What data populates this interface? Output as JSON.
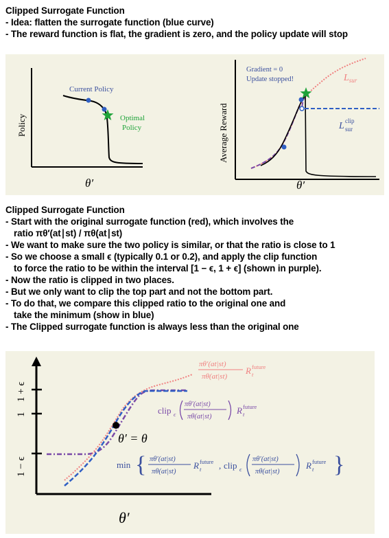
{
  "section1": {
    "title": "Clipped Surrogate Function",
    "lines": [
      "- Idea: flatten the surrogate function (blue curve)",
      "- The reward function is flat, the gradient is zero, and the policy update will stop"
    ]
  },
  "fig1": {
    "left": {
      "ylabel": "Policy",
      "xlabel": "θ′",
      "current_label": "Current Policy",
      "optimal_label_1": "Optimal",
      "optimal_label_2": "Policy"
    },
    "right": {
      "ylabel": "Average Reward",
      "xlabel": "θ′",
      "note_1": "Gradient = 0",
      "note_2": "Update stopped!",
      "lsur": "L",
      "lsur_sub": "sur",
      "lclip": "L",
      "lclip_sub": "sur",
      "lclip_sup": "clip"
    }
  },
  "section2": {
    "title": "Clipped Surrogate Function",
    "lines": [
      "- Start with the original surrogate function (red), which involves the",
      "ratio πθ′(at∣st) / πθ(at∣st)",
      "- We want to make sure the two policy is similar, or that the ratio is close to 1",
      "- So we choose a small ϵ (typically 0.1 or 0.2), and apply the clip function",
      "to force the ratio to be within the interval [1 − ϵ, 1 + ϵ] (shown in purple).",
      "- Now the ratio is clipped in two places.",
      "- But we only want to clip the top part and not the bottom part.",
      "- To do that, we compare this clipped ratio to the original one and",
      "take the minimum (show in blue)",
      "- The Clipped surrogate function is always less than the original one"
    ]
  },
  "fig2": {
    "y_tick_top": "1 + ϵ",
    "y_tick_mid": "1",
    "y_tick_bot": "1 − ϵ",
    "xlabel": "θ′",
    "point_label": "θ′ = θ",
    "red_num": "πθ′(at|st)",
    "red_den": "πθ(at|st)",
    "red_R": "R",
    "red_R_sup": "future",
    "red_R_sub": "t",
    "clip_word": "clip",
    "clip_sub": "ϵ",
    "min_word": "min",
    "comma": ","
  },
  "colors": {
    "panel": "#f3f2e4",
    "red": "#f08080",
    "blue": "#2f5fc4",
    "purple": "#7a4aa8",
    "label_blue": "#3a4f9e",
    "green": "#1fa33a"
  }
}
